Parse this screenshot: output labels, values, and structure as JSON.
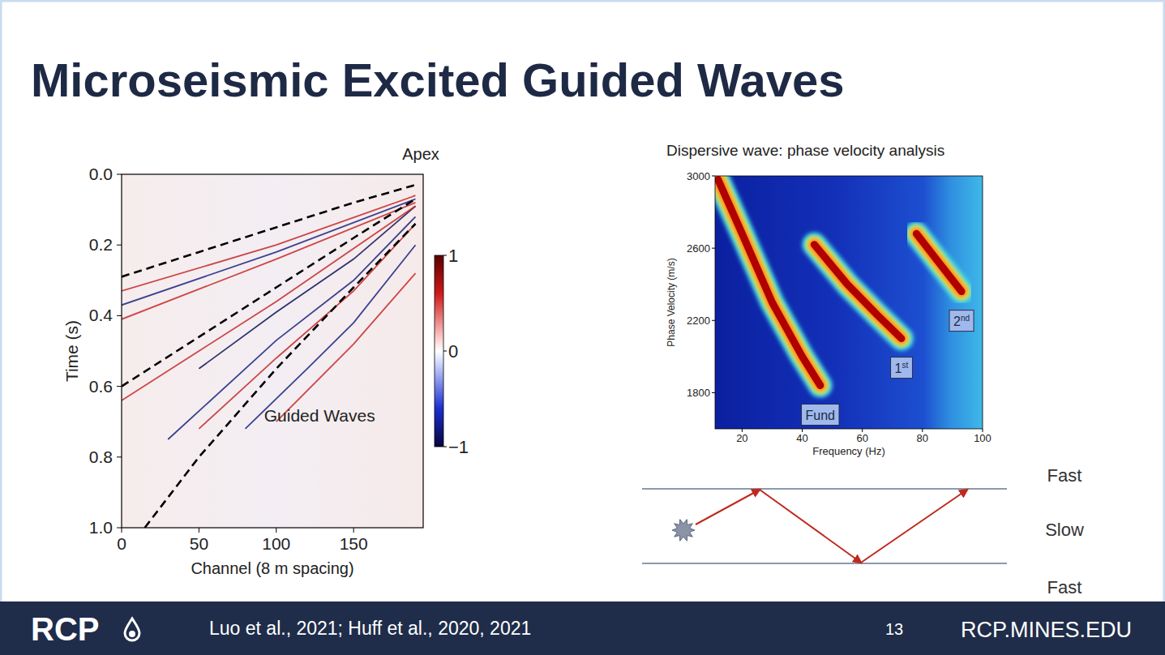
{
  "slide": {
    "title": "Microseismic Excited Guided Waves",
    "footer": {
      "logo": "RCP",
      "citation": "Luo et al., 2021; Huff et al., 2020, 2021",
      "page": "13",
      "url": "RCP.MINES.EDU"
    }
  },
  "chart_data": [
    {
      "type": "line",
      "title": "Apex",
      "x_label": "Channel (8 m spacing)",
      "y_label": "Time (s)",
      "annotations": [
        {
          "text": "Guided Waves",
          "x": 128,
          "y": 0.7
        }
      ],
      "xlim": [
        0,
        195
      ],
      "xticks": [
        0,
        50,
        100,
        150
      ],
      "ylim": [
        1.0,
        0.0
      ],
      "yticks": [
        {
          "value": 0,
          "label": "0.0"
        },
        0.2,
        0.4,
        0.6,
        0.8,
        {
          "value": 1,
          "label": "1.0"
        }
      ],
      "colorbar": {
        "range": [
          -1,
          1
        ],
        "ticks": [
          {
            "value": -1,
            "label": "−1"
          },
          0,
          1
        ]
      },
      "series": [
        {
          "color": "#c62828",
          "line_style": "solid",
          "x": [
            0,
            100,
            190
          ],
          "values": [
            0.33,
            0.2,
            0.06
          ]
        },
        {
          "color": "#1a237e",
          "line_style": "solid",
          "x": [
            0,
            100,
            190
          ],
          "values": [
            0.37,
            0.22,
            0.07
          ]
        },
        {
          "color": "#c62828",
          "line_style": "solid",
          "x": [
            0,
            100,
            190
          ],
          "values": [
            0.41,
            0.24,
            0.08
          ]
        },
        {
          "color": "#0d1257",
          "line_style": "solid",
          "x": [
            50,
            100,
            150,
            190
          ],
          "values": [
            0.55,
            0.39,
            0.24,
            0.09
          ]
        },
        {
          "color": "#c62828",
          "line_style": "solid",
          "x": [
            0,
            50,
            100,
            150,
            190
          ],
          "values": [
            0.64,
            0.5,
            0.36,
            0.21,
            0.09
          ]
        },
        {
          "color": "#1a237e",
          "line_style": "solid",
          "x": [
            30,
            100,
            150,
            190
          ],
          "values": [
            0.75,
            0.47,
            0.3,
            0.12
          ]
        },
        {
          "color": "#c62828",
          "line_style": "solid",
          "x": [
            50,
            100,
            150,
            190
          ],
          "values": [
            0.72,
            0.52,
            0.33,
            0.14
          ]
        },
        {
          "color": "#1a237e",
          "line_style": "solid",
          "x": [
            80,
            120,
            150,
            190
          ],
          "values": [
            0.72,
            0.55,
            0.42,
            0.2
          ]
        },
        {
          "color": "#c62828",
          "line_style": "solid",
          "x": [
            100,
            150,
            190
          ],
          "values": [
            0.7,
            0.48,
            0.28
          ]
        },
        {
          "color": "#000000",
          "line_style": "dashed",
          "x": [
            0,
            50,
            100,
            150,
            190
          ],
          "values": [
            0.29,
            0.22,
            0.15,
            0.08,
            0.03
          ]
        },
        {
          "color": "#000000",
          "line_style": "dashed",
          "x": [
            0,
            50,
            100,
            150,
            190
          ],
          "values": [
            0.6,
            0.46,
            0.32,
            0.18,
            0.07
          ]
        },
        {
          "color": "#000000",
          "line_style": "dashed",
          "x": [
            15,
            50,
            100,
            150,
            190
          ],
          "values": [
            1.0,
            0.8,
            0.55,
            0.32,
            0.14
          ]
        }
      ]
    },
    {
      "type": "line",
      "title": "Dispersive wave: phase velocity analysis",
      "x_label": "Frequency (Hz)",
      "y_label": "Phase Velocity (m/s)",
      "xlim": [
        11,
        100
      ],
      "xticks": [
        20,
        40,
        60,
        80,
        100
      ],
      "ylim": [
        1600,
        3000
      ],
      "yticks": [
        1800,
        2200,
        2600,
        3000
      ],
      "series": [
        {
          "name": "Fund",
          "color": "#b00000",
          "x": [
            12,
            20,
            30,
            40,
            46
          ],
          "values": [
            2980,
            2680,
            2300,
            2000,
            1840
          ]
        },
        {
          "name": "1st",
          "color": "#b00000",
          "x": [
            44,
            55,
            65,
            73
          ],
          "values": [
            2620,
            2400,
            2230,
            2100
          ]
        },
        {
          "name": "2nd",
          "color": "#b00000",
          "x": [
            78,
            85,
            93
          ],
          "values": [
            2680,
            2530,
            2360
          ]
        }
      ]
    }
  ],
  "diagram": {
    "labels": [
      "Fast",
      "Slow",
      "Fast"
    ]
  }
}
